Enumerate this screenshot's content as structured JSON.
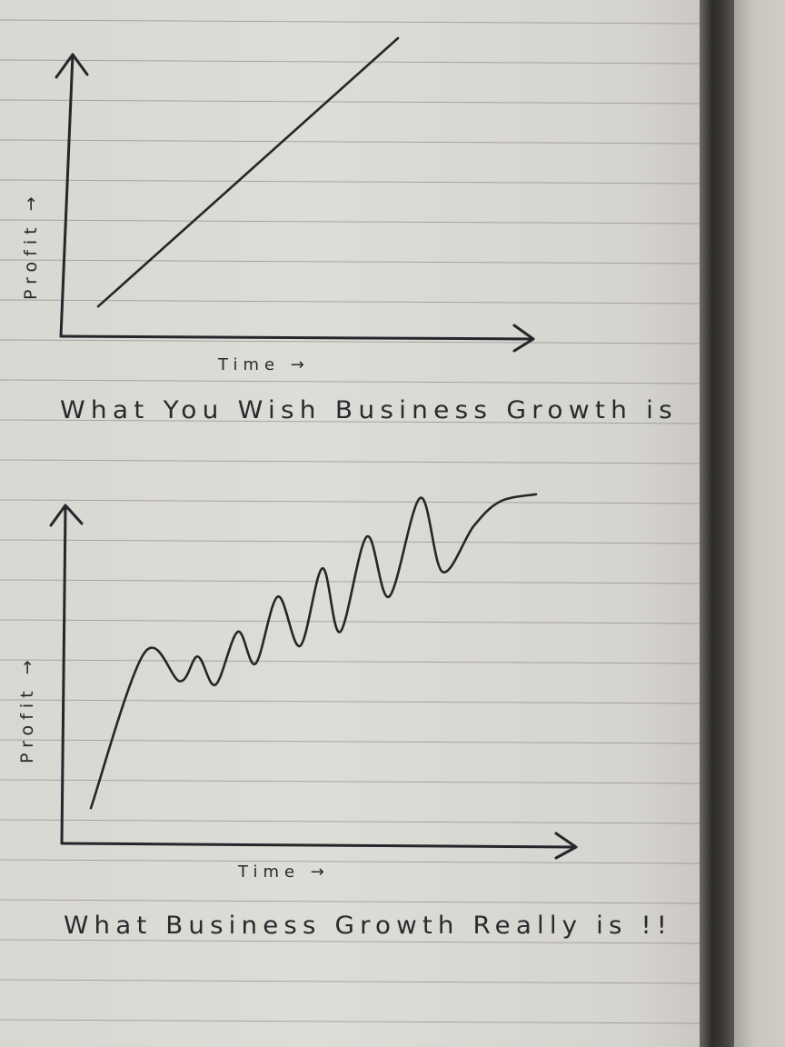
{
  "chart_data": [
    {
      "type": "line",
      "xlabel": "Time →",
      "ylabel": "Profit →",
      "caption": "What You Wish Business Growth is",
      "grid": false,
      "series": [
        {
          "x": [
            0.0,
            1.0
          ],
          "y": [
            0.1,
            1.0
          ]
        }
      ]
    },
    {
      "type": "line",
      "xlabel": "Time →",
      "ylabel": "Profit →",
      "caption": "What Business Growth Really is !!",
      "grid": false,
      "series": [
        {
          "x": [
            0.0,
            0.12,
            0.2,
            0.24,
            0.28,
            0.33,
            0.37,
            0.42,
            0.47,
            0.52,
            0.56,
            0.62,
            0.67,
            0.74,
            0.79,
            0.86,
            0.92,
            1.0
          ],
          "y": [
            0.1,
            0.54,
            0.46,
            0.53,
            0.45,
            0.6,
            0.51,
            0.7,
            0.56,
            0.78,
            0.6,
            0.87,
            0.7,
            0.98,
            0.77,
            0.9,
            0.97,
            0.99
          ]
        }
      ]
    }
  ],
  "colors": {
    "ink": "#26252a",
    "paper": "#dcdad5",
    "rule": "#8f8d8a"
  }
}
